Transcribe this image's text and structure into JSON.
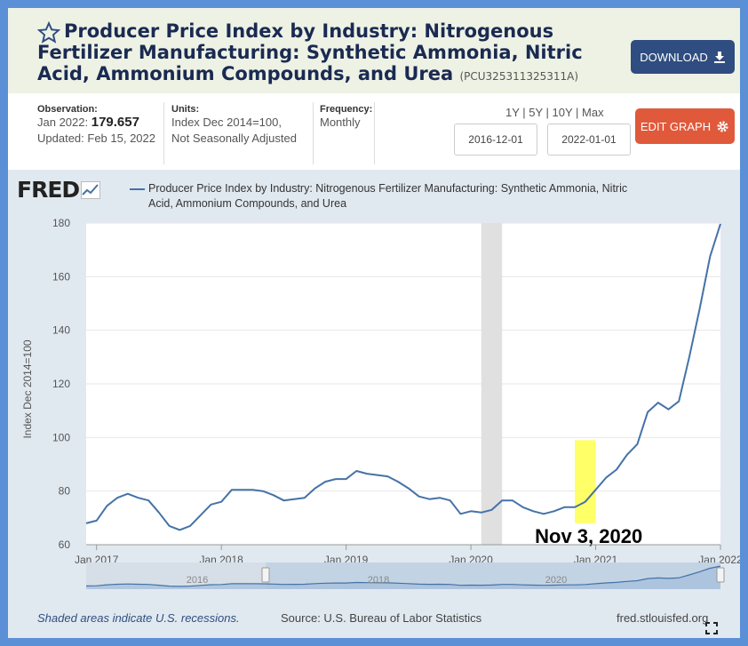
{
  "header": {
    "title": "Producer Price Index by Industry: Nitrogenous Fertilizer Manufacturing: Synthetic Ammonia, Nitric Acid, Ammonium Compounds, and Urea",
    "series_id": "(PCU325311325311A)",
    "download_label": "DOWNLOAD"
  },
  "meta": {
    "observation_label": "Observation:",
    "observation_date": "Jan 2022:",
    "observation_value": "179.657",
    "updated": "Updated: Feb 15, 2022",
    "units_label": "Units:",
    "units_value1": "Index Dec 2014=100,",
    "units_value2": "Not Seasonally Adjusted",
    "frequency_label": "Frequency:",
    "frequency_value": "Monthly",
    "range_options": "1Y | 5Y | 10Y | Max",
    "start_date": "2016-12-01",
    "end_date": "2022-01-01",
    "edit_label": "EDIT GRAPH"
  },
  "colors": {
    "series": "#4572a7",
    "download": "#2f4d80",
    "edit": "#e0593b",
    "recession": "#e0e0e0",
    "highlight": "#ffff4d"
  },
  "chart_data": {
    "type": "line",
    "logo": "FRED",
    "legend": "Producer Price Index by Industry: Nitrogenous Fertilizer Manufacturing: Synthetic Ammonia, Nitric Acid, Ammonium Compounds, and Urea",
    "ylabel": "Index Dec 2014=100",
    "ylim": [
      60,
      180
    ],
    "yticks": [
      60,
      80,
      100,
      120,
      140,
      160,
      180
    ],
    "xlim": [
      "2016-12",
      "2022-01"
    ],
    "xticks": [
      {
        "date": "2017-01",
        "label": "Jan 2017"
      },
      {
        "date": "2018-01",
        "label": "Jan 2018"
      },
      {
        "date": "2019-01",
        "label": "Jan 2019"
      },
      {
        "date": "2020-01",
        "label": "Jan 2020"
      },
      {
        "date": "2021-01",
        "label": "Jan 2021"
      },
      {
        "date": "2022-01",
        "label": "Jan 2022"
      }
    ],
    "recession": {
      "start": "2020-02",
      "end": "2020-04"
    },
    "annotation": {
      "text": "Nov 3, 2020",
      "start": "2020-11",
      "end": "2021-01",
      "ymin": 68,
      "ymax": 99
    },
    "series": [
      {
        "x": [
          "2016-12",
          "2017-01",
          "2017-02",
          "2017-03",
          "2017-04",
          "2017-05",
          "2017-06",
          "2017-07",
          "2017-08",
          "2017-09",
          "2017-10",
          "2017-11",
          "2017-12",
          "2018-01",
          "2018-02",
          "2018-03",
          "2018-04",
          "2018-05",
          "2018-06",
          "2018-07",
          "2018-08",
          "2018-09",
          "2018-10",
          "2018-11",
          "2018-12",
          "2019-01",
          "2019-02",
          "2019-03",
          "2019-04",
          "2019-05",
          "2019-06",
          "2019-07",
          "2019-08",
          "2019-09",
          "2019-10",
          "2019-11",
          "2019-12",
          "2020-01",
          "2020-02",
          "2020-03",
          "2020-04",
          "2020-05",
          "2020-06",
          "2020-07",
          "2020-08",
          "2020-09",
          "2020-10",
          "2020-11",
          "2020-12",
          "2021-01",
          "2021-02",
          "2021-03",
          "2021-04",
          "2021-05",
          "2021-06",
          "2021-07",
          "2021-08",
          "2021-09",
          "2021-10",
          "2021-11",
          "2021-12",
          "2022-01"
        ],
        "values": [
          68,
          69,
          74.5,
          77.5,
          79,
          77.5,
          76.5,
          72,
          67,
          65.5,
          67,
          71,
          75,
          76,
          80.5,
          80.5,
          80.5,
          80,
          78.5,
          76.5,
          77,
          77.5,
          81,
          83.5,
          84.5,
          84.5,
          87.5,
          86.5,
          86,
          85.5,
          83.5,
          81,
          78,
          77,
          77.5,
          76.5,
          71.5,
          72.5,
          72,
          73,
          76.5,
          76.5,
          74,
          72.5,
          71.5,
          72.5,
          74,
          74,
          76,
          80.5,
          85,
          88,
          93.5,
          97.5,
          109.5,
          113,
          110.5,
          113.5,
          130,
          148,
          167.5,
          179.7
        ]
      }
    ],
    "navigator_labels": [
      "2016",
      "2018",
      "2020"
    ]
  },
  "footer": {
    "recession_note": "Shaded areas indicate U.S. recessions.",
    "source": "Source: U.S. Bureau of Labor Statistics",
    "site": "fred.stlouisfed.org"
  }
}
